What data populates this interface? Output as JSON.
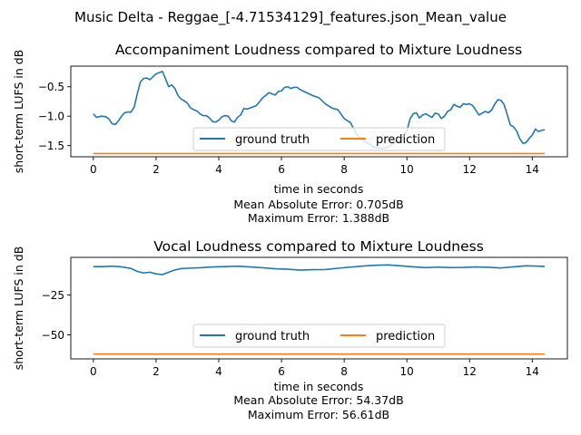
{
  "figure": {
    "suptitle": "Music Delta - Reggae_[-4.71534129]_features.json_Mean_value"
  },
  "chart_data": [
    {
      "type": "line",
      "title": "Accompaniment Loudness compared to Mixture Loudness",
      "xlabel": "time in seconds",
      "ylabel": "short-term LUFS in dB",
      "stats": [
        "Mean Absolute Error: 0.705dB",
        "Maximum Error: 1.388dB"
      ],
      "xlim": [
        -0.72,
        15.12
      ],
      "ylim": [
        -1.69,
        -0.15
      ],
      "xticks": [
        0,
        2,
        4,
        6,
        8,
        10,
        12,
        14
      ],
      "xtick_labels": [
        "0",
        "2",
        "4",
        "6",
        "8",
        "10",
        "12",
        "14"
      ],
      "yticks": [
        -1.5,
        -1.0,
        -0.5
      ],
      "ytick_labels": [
        "−1.5",
        "−1.0",
        "−0.5"
      ],
      "grid": false,
      "legend": {
        "placement": "lower-center",
        "entries": [
          "ground truth",
          "prediction"
        ]
      },
      "series": [
        {
          "name": "ground truth",
          "color": "#1f77b4",
          "x": [
            0,
            0.1,
            0.25,
            0.4,
            0.5,
            0.6,
            0.7,
            0.8,
            0.9,
            1.0,
            1.1,
            1.2,
            1.3,
            1.4,
            1.5,
            1.6,
            1.7,
            1.8,
            1.9,
            2.0,
            2.1,
            2.2,
            2.3,
            2.4,
            2.5,
            2.6,
            2.7,
            2.8,
            2.9,
            3.0,
            3.1,
            3.2,
            3.3,
            3.4,
            3.5,
            3.6,
            3.7,
            3.8,
            3.9,
            4.0,
            4.1,
            4.2,
            4.3,
            4.4,
            4.5,
            4.6,
            4.7,
            4.8,
            4.9,
            5.0,
            5.2,
            5.4,
            5.6,
            5.8,
            5.9,
            6.0,
            6.1,
            6.2,
            6.3,
            6.4,
            6.5,
            6.6,
            6.8,
            7.0,
            7.2,
            7.4,
            7.6,
            7.8,
            8.0,
            8.2,
            8.4,
            8.6,
            8.8,
            9.0,
            9.2,
            9.4,
            9.6,
            9.8,
            10.0,
            10.1,
            10.2,
            10.3,
            10.4,
            10.5,
            10.6,
            10.7,
            10.8,
            10.9,
            11.0,
            11.1,
            11.2,
            11.3,
            11.4,
            11.5,
            11.6,
            11.7,
            11.8,
            11.9,
            12.0,
            12.1,
            12.2,
            12.3,
            12.4,
            12.5,
            12.6,
            12.7,
            12.8,
            12.9,
            13.0,
            13.1,
            13.2,
            13.3,
            13.4,
            13.5,
            13.6,
            13.7,
            13.8,
            13.9,
            14.0,
            14.1,
            14.2,
            14.3,
            14.4
          ],
          "values": [
            -0.96,
            -1.02,
            -1.0,
            -1.01,
            -1.05,
            -1.13,
            -1.14,
            -1.08,
            -1.0,
            -0.94,
            -0.93,
            -0.93,
            -0.85,
            -0.62,
            -0.42,
            -0.36,
            -0.35,
            -0.38,
            -0.33,
            -0.28,
            -0.26,
            -0.24,
            -0.36,
            -0.5,
            -0.47,
            -0.53,
            -0.65,
            -0.71,
            -0.74,
            -0.78,
            -0.86,
            -0.89,
            -0.91,
            -0.96,
            -0.99,
            -0.99,
            -1.03,
            -1.09,
            -1.1,
            -1.07,
            -1.01,
            -0.99,
            -1.0,
            -1.08,
            -1.1,
            -1.02,
            -0.98,
            -0.87,
            -0.88,
            -0.86,
            -0.82,
            -0.69,
            -0.6,
            -0.64,
            -0.58,
            -0.57,
            -0.51,
            -0.5,
            -0.53,
            -0.51,
            -0.51,
            -0.55,
            -0.6,
            -0.65,
            -0.69,
            -0.79,
            -0.86,
            -0.89,
            -1.04,
            -1.11,
            -1.31,
            -1.41,
            -1.48,
            -1.53,
            -1.55,
            -1.53,
            -1.45,
            -1.4,
            -1.25,
            -1.05,
            -0.96,
            -0.94,
            -1.03,
            -0.98,
            -0.96,
            -0.99,
            -1.02,
            -0.95,
            -0.96,
            -1.04,
            -1.0,
            -0.92,
            -0.89,
            -0.8,
            -0.83,
            -0.85,
            -0.79,
            -0.8,
            -0.79,
            -0.82,
            -0.9,
            -0.98,
            -0.95,
            -0.92,
            -0.94,
            -0.9,
            -0.8,
            -0.72,
            -0.73,
            -0.8,
            -0.97,
            -1.15,
            -1.18,
            -1.25,
            -1.38,
            -1.46,
            -1.45,
            -1.38,
            -1.32,
            -1.22,
            -1.26,
            -1.24,
            -1.23
          ]
        },
        {
          "name": "prediction",
          "color": "#ff7f0e",
          "x": [
            0,
            14.4
          ],
          "values": [
            -1.635,
            -1.635
          ]
        }
      ]
    },
    {
      "type": "line",
      "title": "Vocal Loudness compared to Mixture Loudness",
      "xlabel": "time in seconds",
      "ylabel": "short-term LUFS in dB",
      "stats": [
        "Mean Absolute Error: 54.37dB",
        "Maximum Error: 56.61dB"
      ],
      "xlim": [
        -0.72,
        15.12
      ],
      "ylim": [
        -65.0,
        -1.5
      ],
      "xticks": [
        0,
        2,
        4,
        6,
        8,
        10,
        12,
        14
      ],
      "xtick_labels": [
        "0",
        "2",
        "4",
        "6",
        "8",
        "10",
        "12",
        "14"
      ],
      "yticks": [
        -50,
        -25
      ],
      "ytick_labels": [
        "−50",
        "−25"
      ],
      "grid": false,
      "legend": {
        "placement": "lower-center",
        "entries": [
          "ground truth",
          "prediction"
        ]
      },
      "series": [
        {
          "name": "ground truth",
          "color": "#1f77b4",
          "x": [
            0,
            0.3,
            0.6,
            0.9,
            1.2,
            1.4,
            1.6,
            1.8,
            2.0,
            2.2,
            2.4,
            2.6,
            2.8,
            3.0,
            3.4,
            3.8,
            4.2,
            4.6,
            5.0,
            5.4,
            5.8,
            6.2,
            6.6,
            7.0,
            7.4,
            7.8,
            8.2,
            8.6,
            9.0,
            9.4,
            9.8,
            10.2,
            10.6,
            11.0,
            11.4,
            11.8,
            12.2,
            12.6,
            13.0,
            13.4,
            13.8,
            14.2,
            14.4
          ],
          "values": [
            -7.3,
            -7.3,
            -7.0,
            -7.4,
            -8.4,
            -10.3,
            -11.2,
            -10.8,
            -11.8,
            -12.3,
            -10.8,
            -9.4,
            -8.5,
            -8.3,
            -8.0,
            -7.5,
            -7.3,
            -7.0,
            -7.5,
            -8.0,
            -8.6,
            -8.9,
            -9.5,
            -9.2,
            -9.1,
            -8.3,
            -7.6,
            -6.9,
            -6.4,
            -6.2,
            -6.8,
            -7.4,
            -7.9,
            -7.6,
            -7.9,
            -7.8,
            -7.5,
            -7.7,
            -8.1,
            -7.4,
            -6.8,
            -7.0,
            -7.2
          ]
        },
        {
          "name": "prediction",
          "color": "#ff7f0e",
          "x": [
            0,
            14.4
          ],
          "values": [
            -62.0,
            -62.0
          ]
        }
      ]
    }
  ]
}
